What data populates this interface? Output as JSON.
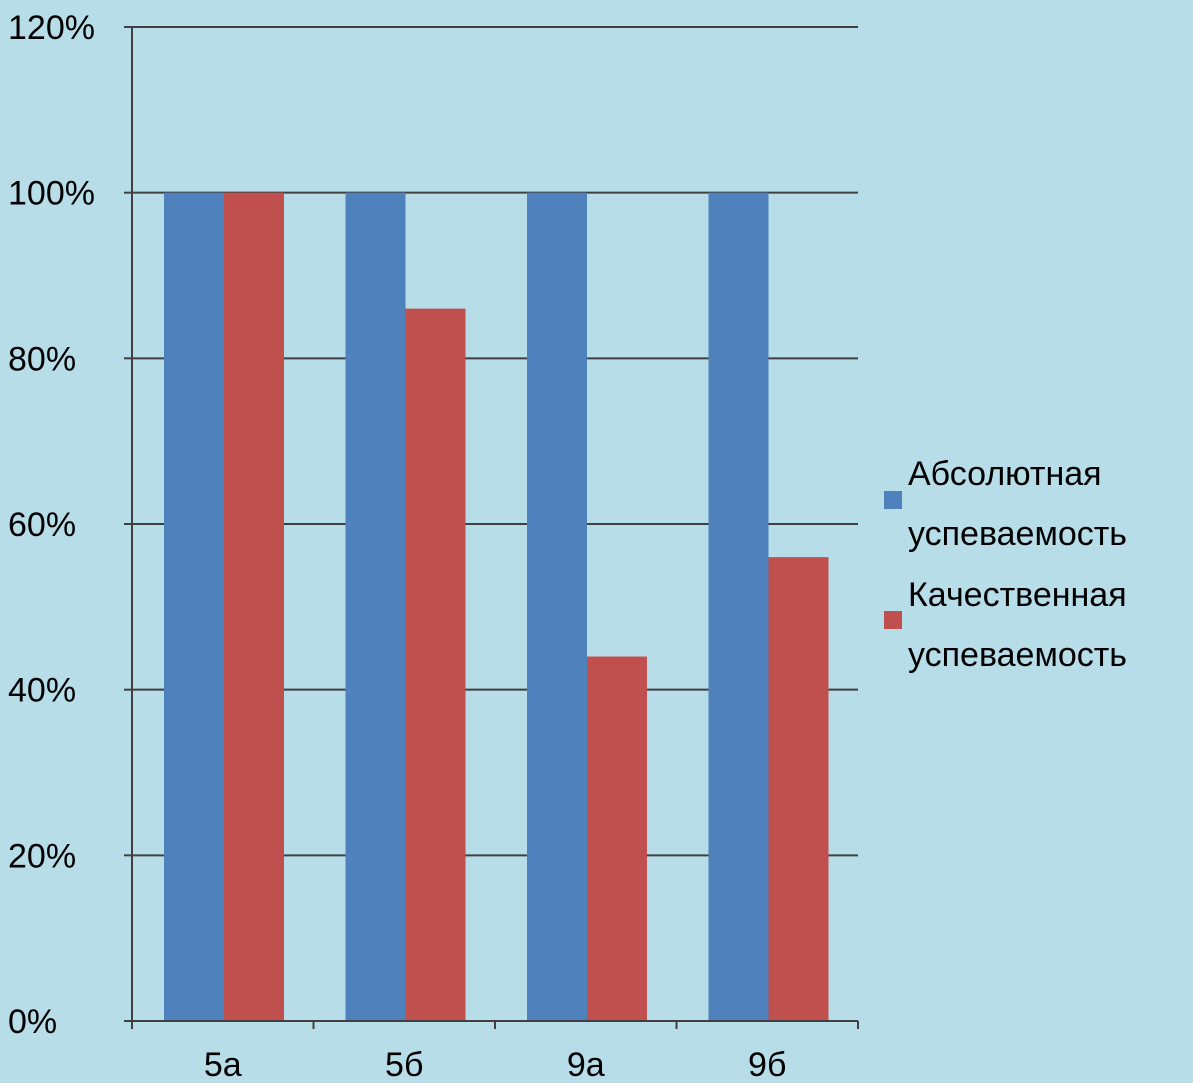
{
  "chart_data": {
    "type": "bar",
    "categories": [
      "5а",
      "5б",
      "9а",
      "9б"
    ],
    "series": [
      {
        "name": "Абсолютная успеваемость",
        "legend_lines": [
          "Абсолютная",
          "успеваемость"
        ],
        "values": [
          100,
          100,
          100,
          100
        ],
        "color": "#4f81bd"
      },
      {
        "name": "Качественная успеваемость",
        "legend_lines": [
          "Качественная",
          "успеваемость"
        ],
        "values": [
          100,
          86,
          44,
          56
        ],
        "color": "#c0504d"
      }
    ],
    "yticks": [
      "0%",
      "20%",
      "40%",
      "60%",
      "80%",
      "100%",
      "120%"
    ],
    "ylim": [
      0,
      120
    ],
    "unit": "%",
    "grid": true,
    "legend_position": "right",
    "background": "#b7dde8",
    "axis_color": "#404040"
  }
}
